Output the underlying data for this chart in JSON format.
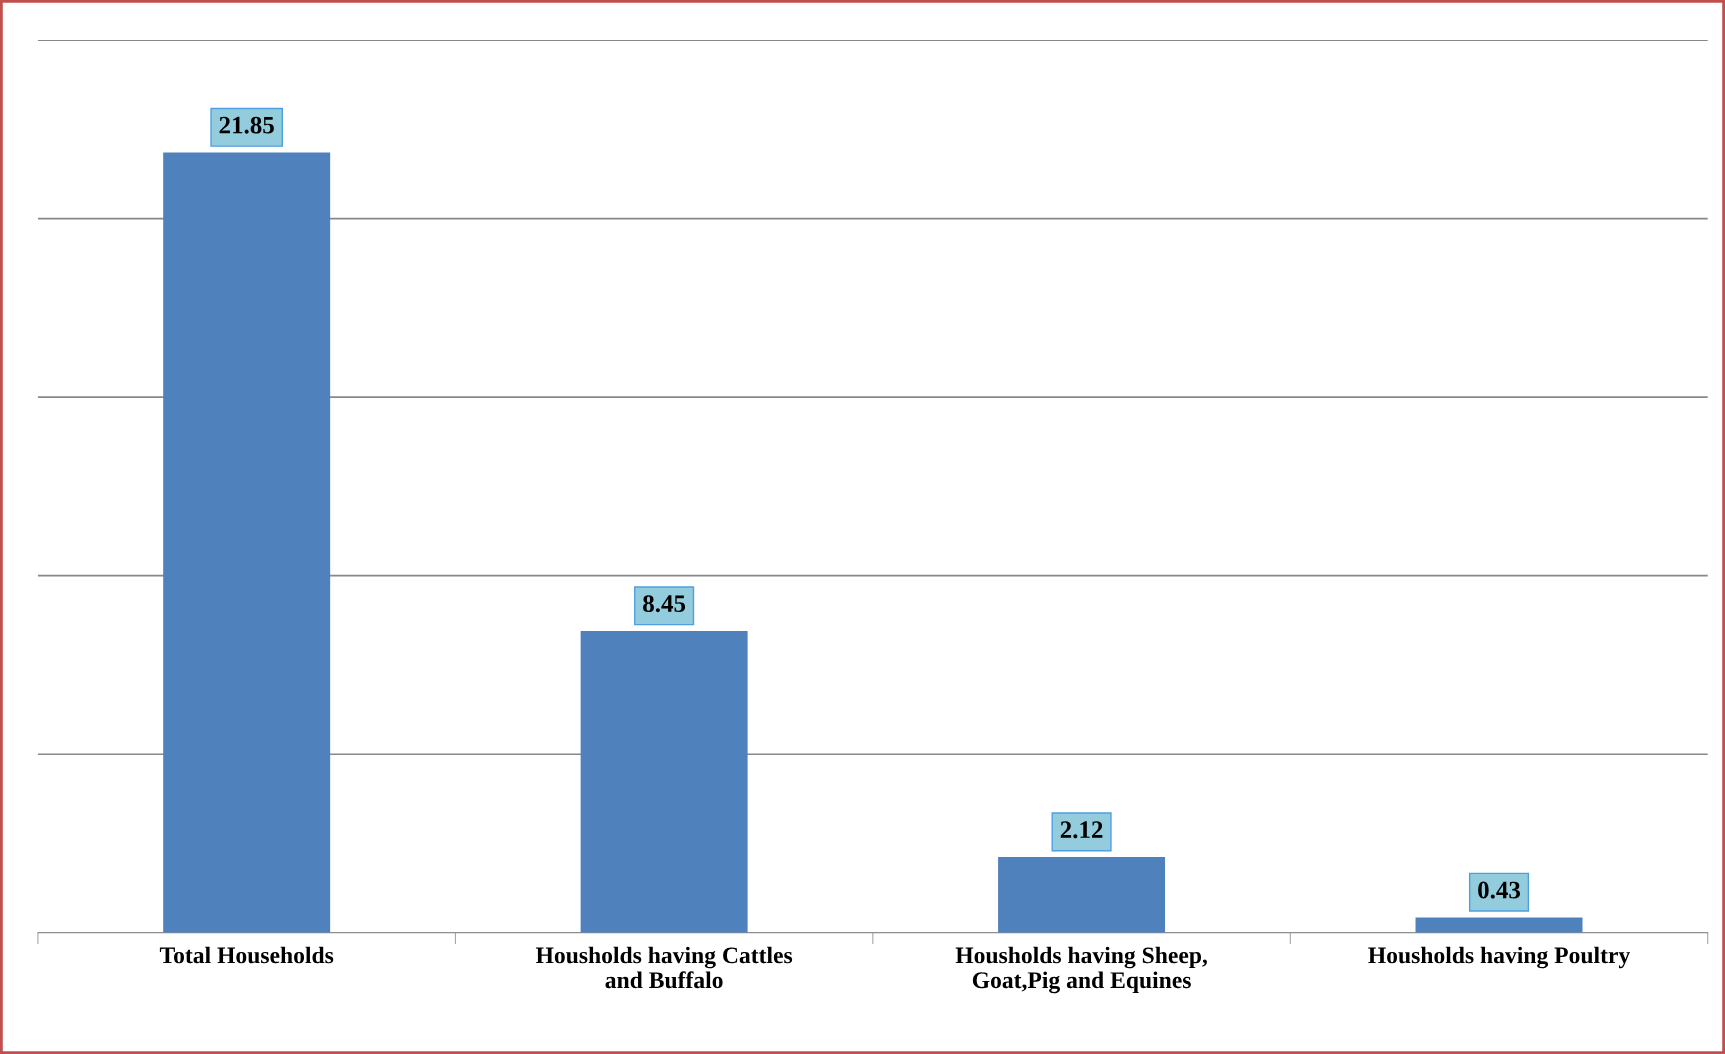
{
  "chart_data": {
    "type": "bar",
    "categories": [
      "Total Households",
      "Housholds having Cattles\nand Buffalo",
      "Housholds having Sheep,\nGoat,Pig and Equines",
      "Housholds having Poultry"
    ],
    "values": [
      21.85,
      8.45,
      2.12,
      0.43
    ],
    "color": "#4f81bd",
    "ylim": [
      0,
      25
    ],
    "yticks": [
      {
        "value": 0,
        "label": null
      },
      {
        "value": 5,
        "label": null
      },
      {
        "value": 10,
        "label": null
      },
      {
        "value": 15,
        "label": null
      },
      {
        "value": 20,
        "label": null
      },
      {
        "value": 25,
        "label": null
      }
    ],
    "grid": "y",
    "data_labels": true,
    "tick_labels": "x",
    "legend": false
  }
}
